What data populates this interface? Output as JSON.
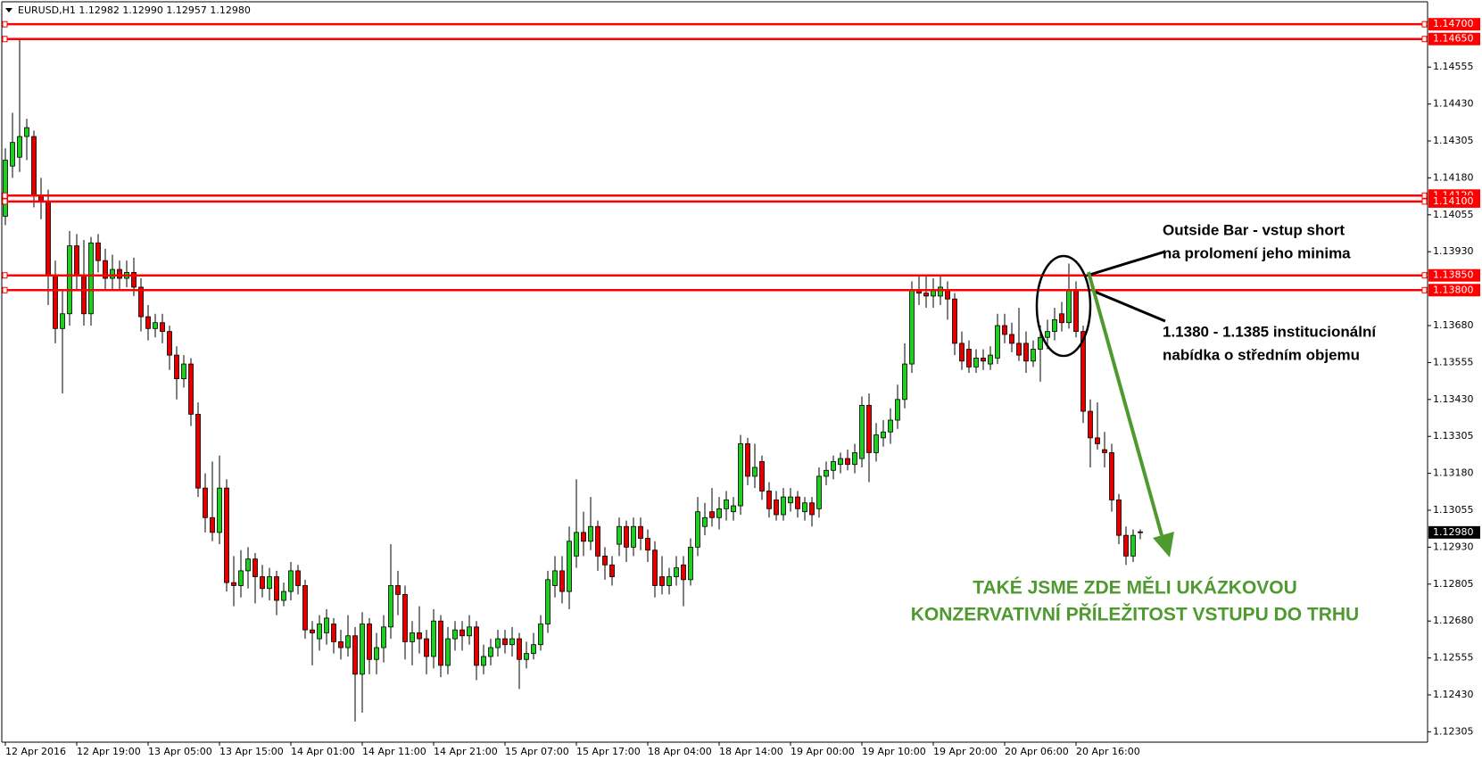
{
  "chart_data": {
    "type": "candlestick",
    "title": "EURUSD,H1  1.12982 1.12990 1.12957 1.12980",
    "up_color": "#22cc22",
    "down_color": "#e00000",
    "level_color": "#ff0000",
    "categories": [
      "12 Apr 2016",
      null,
      null,
      null,
      null,
      null,
      null,
      null,
      null,
      null,
      "12 Apr 19:00",
      null,
      null,
      null,
      null,
      null,
      null,
      null,
      null,
      null,
      "13 Apr 05:00",
      null,
      null,
      null,
      null,
      null,
      null,
      null,
      null,
      null,
      "13 Apr 15:00",
      null,
      null,
      null,
      null,
      null,
      null,
      null,
      null,
      null,
      "14 Apr 01:00",
      null,
      null,
      null,
      null,
      null,
      null,
      null,
      null,
      null,
      "14 Apr 11:00",
      null,
      null,
      null,
      null,
      null,
      null,
      null,
      null,
      null,
      "14 Apr 21:00",
      null,
      null,
      null,
      null,
      null,
      null,
      null,
      null,
      null,
      "15 Apr 07:00",
      null,
      null,
      null,
      null,
      null,
      null,
      null,
      null,
      null,
      "15 Apr 17:00",
      null,
      null,
      null,
      null,
      null,
      null,
      null,
      null,
      null,
      "18 Apr 04:00",
      null,
      null,
      null,
      null,
      null,
      null,
      null,
      null,
      null,
      "18 Apr 14:00",
      null,
      null,
      null,
      null,
      null,
      null,
      null,
      null,
      null,
      "19 Apr 00:00",
      null,
      null,
      null,
      null,
      null,
      null,
      null,
      null,
      null,
      "19 Apr 10:00",
      null,
      null,
      null,
      null,
      null,
      null,
      null,
      null,
      null,
      "19 Apr 20:00",
      null,
      null,
      null,
      null,
      null,
      null,
      null,
      null,
      null,
      "20 Apr 06:00",
      null,
      null,
      null,
      null,
      null,
      null,
      null,
      null,
      null,
      "20 Apr 16:00",
      null,
      null,
      null,
      null,
      null,
      null,
      null,
      null,
      null
    ],
    "ohlc": [
      [
        1.1405,
        1.1428,
        1.1402,
        1.1424
      ],
      [
        1.1422,
        1.144,
        1.1418,
        1.143
      ],
      [
        1.1425,
        1.1465,
        1.142,
        1.1432
      ],
      [
        1.1432,
        1.1438,
        1.1424,
        1.1435
      ],
      [
        1.1432,
        1.1434,
        1.1408,
        1.1412
      ],
      [
        1.1412,
        1.1418,
        1.1404,
        1.141
      ],
      [
        1.141,
        1.1414,
        1.1375,
        1.1385
      ],
      [
        1.1385,
        1.139,
        1.1362,
        1.1367
      ],
      [
        1.1367,
        1.138,
        1.1345,
        1.1372
      ],
      [
        1.1372,
        1.14,
        1.1368,
        1.1395
      ],
      [
        1.1395,
        1.1399,
        1.138,
        1.1385
      ],
      [
        1.1385,
        1.1397,
        1.1368,
        1.1372
      ],
      [
        1.1372,
        1.1398,
        1.1368,
        1.1396
      ],
      [
        1.1396,
        1.1399,
        1.1386,
        1.139
      ],
      [
        1.139,
        1.1394,
        1.138,
        1.1384
      ],
      [
        1.1384,
        1.1392,
        1.138,
        1.1387
      ],
      [
        1.1387,
        1.139,
        1.138,
        1.1384
      ],
      [
        1.1384,
        1.139,
        1.1381,
        1.1386
      ],
      [
        1.1386,
        1.1391,
        1.1378,
        1.1381
      ],
      [
        1.1381,
        1.1384,
        1.1366,
        1.1371
      ],
      [
        1.1371,
        1.1375,
        1.1363,
        1.1367
      ],
      [
        1.1367,
        1.1372,
        1.1364,
        1.1369
      ],
      [
        1.1369,
        1.1372,
        1.1362,
        1.1366
      ],
      [
        1.1366,
        1.1368,
        1.1353,
        1.1358
      ],
      [
        1.1358,
        1.1361,
        1.1343,
        1.135
      ],
      [
        1.135,
        1.1358,
        1.1347,
        1.1355
      ],
      [
        1.1355,
        1.1357,
        1.1334,
        1.1338
      ],
      [
        1.1338,
        1.1342,
        1.131,
        1.1313
      ],
      [
        1.1313,
        1.1318,
        1.1298,
        1.1303
      ],
      [
        1.1303,
        1.1322,
        1.1295,
        1.1298
      ],
      [
        1.1298,
        1.1324,
        1.1294,
        1.1313
      ],
      [
        1.1313,
        1.1316,
        1.1278,
        1.1281
      ],
      [
        1.1281,
        1.129,
        1.1273,
        1.128
      ],
      [
        1.128,
        1.1292,
        1.1276,
        1.1285
      ],
      [
        1.1285,
        1.1293,
        1.1279,
        1.1289
      ],
      [
        1.1289,
        1.1291,
        1.1274,
        1.1283
      ],
      [
        1.1283,
        1.1287,
        1.1276,
        1.1279
      ],
      [
        1.1279,
        1.1286,
        1.1275,
        1.1283
      ],
      [
        1.1283,
        1.1285,
        1.127,
        1.1275
      ],
      [
        1.1275,
        1.1281,
        1.1273,
        1.1278
      ],
      [
        1.1278,
        1.1288,
        1.1275,
        1.1285
      ],
      [
        1.1285,
        1.1287,
        1.1277,
        1.128
      ],
      [
        1.128,
        1.1282,
        1.1262,
        1.1265
      ],
      [
        1.1265,
        1.1268,
        1.1253,
        1.1264
      ],
      [
        1.1262,
        1.127,
        1.1258,
        1.1267
      ],
      [
        1.1264,
        1.1272,
        1.126,
        1.1269
      ],
      [
        1.1267,
        1.1269,
        1.1257,
        1.1261
      ],
      [
        1.1261,
        1.1265,
        1.1255,
        1.1259
      ],
      [
        1.1259,
        1.127,
        1.1256,
        1.1263
      ],
      [
        1.1263,
        1.1266,
        1.1234,
        1.125
      ],
      [
        1.125,
        1.1271,
        1.1237,
        1.1267
      ],
      [
        1.1267,
        1.1269,
        1.125,
        1.1255
      ],
      [
        1.1255,
        1.1264,
        1.125,
        1.1259
      ],
      [
        1.1259,
        1.127,
        1.1254,
        1.1266
      ],
      [
        1.1266,
        1.1294,
        1.1262,
        1.128
      ],
      [
        1.128,
        1.1285,
        1.127,
        1.1277
      ],
      [
        1.1277,
        1.128,
        1.1255,
        1.1261
      ],
      [
        1.1261,
        1.1268,
        1.1253,
        1.1264
      ],
      [
        1.1264,
        1.1273,
        1.1257,
        1.1262
      ],
      [
        1.1262,
        1.1265,
        1.125,
        1.1256
      ],
      [
        1.1256,
        1.1272,
        1.1252,
        1.1268
      ],
      [
        1.1268,
        1.127,
        1.1249,
        1.1253
      ],
      [
        1.1253,
        1.1266,
        1.125,
        1.1262
      ],
      [
        1.1262,
        1.1268,
        1.1258,
        1.1265
      ],
      [
        1.1265,
        1.1268,
        1.1258,
        1.1263
      ],
      [
        1.1263,
        1.127,
        1.126,
        1.1266
      ],
      [
        1.1266,
        1.1268,
        1.1248,
        1.1253
      ],
      [
        1.1253,
        1.126,
        1.125,
        1.1256
      ],
      [
        1.1256,
        1.1262,
        1.1253,
        1.1259
      ],
      [
        1.1259,
        1.1265,
        1.1256,
        1.1262
      ],
      [
        1.1262,
        1.1265,
        1.1257,
        1.126
      ],
      [
        1.126,
        1.1266,
        1.1256,
        1.1262
      ],
      [
        1.1262,
        1.1264,
        1.1245,
        1.1255
      ],
      [
        1.1255,
        1.1261,
        1.1252,
        1.1257
      ],
      [
        1.1257,
        1.1264,
        1.1255,
        1.126
      ],
      [
        1.126,
        1.127,
        1.1258,
        1.1267
      ],
      [
        1.1267,
        1.1285,
        1.1264,
        1.1282
      ],
      [
        1.128,
        1.129,
        1.1276,
        1.1285
      ],
      [
        1.1285,
        1.129,
        1.1274,
        1.1278
      ],
      [
        1.1278,
        1.13,
        1.1272,
        1.1295
      ],
      [
        1.129,
        1.1316,
        1.1286,
        1.1298
      ],
      [
        1.1298,
        1.1305,
        1.129,
        1.1295
      ],
      [
        1.1295,
        1.131,
        1.1292,
        1.13
      ],
      [
        1.13,
        1.1302,
        1.1285,
        1.129
      ],
      [
        1.129,
        1.1293,
        1.1282,
        1.1287
      ],
      [
        1.1287,
        1.129,
        1.128,
        1.1283
      ],
      [
        1.1294,
        1.1303,
        1.129,
        1.13
      ],
      [
        1.13,
        1.1302,
        1.1288,
        1.1293
      ],
      [
        1.1293,
        1.1303,
        1.129,
        1.13
      ],
      [
        1.13,
        1.1303,
        1.1292,
        1.1296
      ],
      [
        1.1296,
        1.1299,
        1.1288,
        1.1292
      ],
      [
        1.1292,
        1.1295,
        1.1276,
        1.128
      ],
      [
        1.1283,
        1.129,
        1.1277,
        1.128
      ],
      [
        1.128,
        1.1286,
        1.1277,
        1.1283
      ],
      [
        1.1283,
        1.129,
        1.128,
        1.1286
      ],
      [
        1.1287,
        1.129,
        1.1273,
        1.1282
      ],
      [
        1.1282,
        1.1296,
        1.128,
        1.1293
      ],
      [
        1.1293,
        1.131,
        1.129,
        1.1305
      ],
      [
        1.13,
        1.1308,
        1.1297,
        1.1303
      ],
      [
        1.1305,
        1.1313,
        1.13,
        1.1303
      ],
      [
        1.1303,
        1.131,
        1.1299,
        1.1306
      ],
      [
        1.1306,
        1.1312,
        1.1302,
        1.1309
      ],
      [
        1.1305,
        1.131,
        1.1302,
        1.1307
      ],
      [
        1.1307,
        1.1331,
        1.1304,
        1.1328
      ],
      [
        1.1328,
        1.133,
        1.1314,
        1.1317
      ],
      [
        1.1317,
        1.1328,
        1.1313,
        1.132
      ],
      [
        1.1322,
        1.1324,
        1.1309,
        1.1312
      ],
      [
        1.1312,
        1.1315,
        1.1303,
        1.1306
      ],
      [
        1.1309,
        1.1312,
        1.1302,
        1.1304
      ],
      [
        1.1304,
        1.1313,
        1.1302,
        1.131
      ],
      [
        1.1308,
        1.1313,
        1.1305,
        1.131
      ],
      [
        1.131,
        1.1312,
        1.1303,
        1.1306
      ],
      [
        1.1305,
        1.131,
        1.1302,
        1.1308
      ],
      [
        1.1308,
        1.131,
        1.13,
        1.1304
      ],
      [
        1.1306,
        1.132,
        1.1303,
        1.1317
      ],
      [
        1.1317,
        1.1322,
        1.1314,
        1.1319
      ],
      [
        1.1319,
        1.1324,
        1.1316,
        1.1322
      ],
      [
        1.1321,
        1.1325,
        1.1318,
        1.1323
      ],
      [
        1.1323,
        1.1326,
        1.1319,
        1.1321
      ],
      [
        1.1321,
        1.1328,
        1.1318,
        1.1325
      ],
      [
        1.1323,
        1.1344,
        1.132,
        1.1341
      ],
      [
        1.1341,
        1.1345,
        1.1315,
        1.1325
      ],
      [
        1.1325,
        1.1335,
        1.1322,
        1.1331
      ],
      [
        1.133,
        1.1336,
        1.1327,
        1.1332
      ],
      [
        1.1332,
        1.134,
        1.1328,
        1.1336
      ],
      [
        1.1336,
        1.1348,
        1.1333,
        1.1343
      ],
      [
        1.1343,
        1.1362,
        1.134,
        1.1355
      ],
      [
        1.1355,
        1.1383,
        1.1352,
        1.138
      ],
      [
        1.138,
        1.1385,
        1.1375,
        1.1379
      ],
      [
        1.1379,
        1.1385,
        1.1374,
        1.1378
      ],
      [
        1.1378,
        1.1384,
        1.1374,
        1.138
      ],
      [
        1.1378,
        1.1385,
        1.1375,
        1.1381
      ],
      [
        1.138,
        1.1383,
        1.137,
        1.1377
      ],
      [
        1.1377,
        1.1379,
        1.1358,
        1.1362
      ],
      [
        1.1362,
        1.1366,
        1.1353,
        1.1356
      ],
      [
        1.136,
        1.1363,
        1.1352,
        1.1354
      ],
      [
        1.1354,
        1.136,
        1.1352,
        1.1357
      ],
      [
        1.1357,
        1.136,
        1.1353,
        1.1356
      ],
      [
        1.1355,
        1.1361,
        1.1353,
        1.1358
      ],
      [
        1.1357,
        1.1372,
        1.1355,
        1.1368
      ],
      [
        1.1368,
        1.1372,
        1.1362,
        1.1365
      ],
      [
        1.1365,
        1.1369,
        1.1359,
        1.1362
      ],
      [
        1.1362,
        1.1374,
        1.1356,
        1.1358
      ],
      [
        1.1362,
        1.1366,
        1.1352,
        1.1356
      ],
      [
        1.1356,
        1.1363,
        1.1354,
        1.136
      ],
      [
        1.136,
        1.1368,
        1.1349,
        1.1364
      ],
      [
        1.1364,
        1.137,
        1.136,
        1.1366
      ],
      [
        1.1366,
        1.1374,
        1.1363,
        1.137
      ],
      [
        1.1372,
        1.1376,
        1.1366,
        1.1369
      ],
      [
        1.1369,
        1.1389,
        1.1367,
        1.138
      ],
      [
        1.138,
        1.1383,
        1.1364,
        1.1366
      ],
      [
        1.1366,
        1.1368,
        1.1335,
        1.1339
      ],
      [
        1.1339,
        1.1343,
        1.132,
        1.133
      ],
      [
        1.133,
        1.1342,
        1.1326,
        1.1328
      ],
      [
        1.1326,
        1.1332,
        1.132,
        1.1325
      ],
      [
        1.1325,
        1.1328,
        1.1305,
        1.1309
      ],
      [
        1.1309,
        1.1311,
        1.1294,
        1.1297
      ],
      [
        1.1297,
        1.13,
        1.1287,
        1.129
      ],
      [
        1.129,
        1.1299,
        1.1288,
        1.1297
      ],
      [
        1.12982,
        1.1299,
        1.12957,
        1.1298
      ]
    ],
    "ylim": [
      1.1227,
      1.1477
    ],
    "yticks": [
      1.14555,
      {
        "value": 1.1443,
        "label": "1.14430"
      },
      1.14305,
      {
        "value": 1.1418,
        "label": "1.14180"
      },
      1.14055,
      {
        "value": 1.1393,
        "label": "1.13930"
      },
      {
        "value": 1.1368,
        "label": "1.13680"
      },
      1.13555,
      {
        "value": 1.1343,
        "label": "1.13430"
      },
      1.13305,
      {
        "value": 1.1318,
        "label": "1.13180"
      },
      1.13055,
      {
        "value": 1.1293,
        "label": "1.12930"
      },
      1.12805,
      {
        "value": 1.1268,
        "label": "1.12680"
      },
      1.12555,
      {
        "value": 1.1243,
        "label": "1.12430"
      },
      1.12305
    ],
    "levels": [
      {
        "value": 1.147,
        "label": "1.14700"
      },
      {
        "value": 1.1465,
        "label": "1.14650"
      },
      {
        "value": 1.1412,
        "label": "1.14120"
      },
      {
        "value": 1.141,
        "label": "1.14100"
      },
      {
        "value": 1.1385,
        "label": "1.13850"
      },
      {
        "value": 1.138,
        "label": "1.13800"
      }
    ],
    "current_price": {
      "value": 1.1298,
      "label": "1.12980"
    },
    "annotations": [
      {
        "lines": [
          "Outside Bar - vstup short",
          "na prolomení jeho minima"
        ],
        "color": "#000000"
      },
      {
        "lines": [
          "1.1380 - 1.1385 institucionální",
          "nabídka o středním objemu"
        ],
        "color": "#000000"
      },
      {
        "lines": [
          "TAKÉ JSME ZDE MĚLI UKÁZKOVOU",
          "KONZERVATIVNÍ PŘÍLEŽITOST VSTUPU DO TRHU"
        ],
        "color": "#4e9a2e"
      }
    ]
  }
}
